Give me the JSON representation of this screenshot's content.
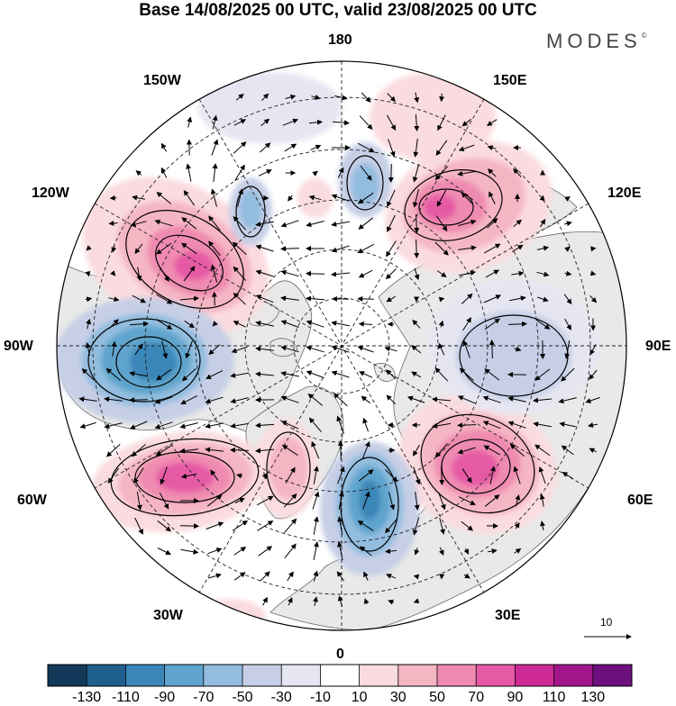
{
  "title": "Base 14/08/2025 00 UTC, valid 23/08/2025 00 UTC",
  "brand": "MODES",
  "brand_mark": "©",
  "labels": {
    "lon180": "180",
    "lon150w": "150W",
    "lon150e": "150E",
    "lon120w": "120W",
    "lon120e": "120E",
    "lon90w": "90W",
    "lon90e": "90E",
    "lon60w": "60W",
    "lon60e": "60E",
    "lon30w": "30W",
    "lon30e": "30E",
    "lon0": "0"
  },
  "reference_vector": "10",
  "legend": {
    "colors": [
      "#12395a",
      "#1f5f8e",
      "#3a86b8",
      "#5ea4cc",
      "#93bddf",
      "#c6cfe6",
      "#e6e6f2",
      "#ffffff",
      "#fadbdf",
      "#f5b6c4",
      "#ef8bb0",
      "#e65aa5",
      "#cd2a96",
      "#a3158a",
      "#6e0f80"
    ],
    "ticks": [
      "-130",
      "-110",
      "-90",
      "-70",
      "-50",
      "-30",
      "-10",
      "10",
      "30",
      "50",
      "70",
      "90",
      "110",
      "130"
    ]
  },
  "anomalies": [
    {
      "sign": "pos",
      "value": 90,
      "name": "anomaly-high-alaska"
    },
    {
      "sign": "pos",
      "value": 90,
      "name": "anomaly-high-east-siberia"
    },
    {
      "sign": "pos",
      "value": 90,
      "name": "anomaly-high-ural"
    },
    {
      "sign": "pos",
      "value": 90,
      "name": "anomaly-high-labrador"
    },
    {
      "sign": "pos",
      "value": 50,
      "name": "anomaly-high-greenland-sea"
    },
    {
      "sign": "pos",
      "value": 30,
      "name": "anomaly-high-north-pacific"
    },
    {
      "sign": "neg",
      "value": -90,
      "name": "anomaly-low-hudson-bay"
    },
    {
      "sign": "neg",
      "value": -90,
      "name": "anomaly-low-norwegian-sea"
    },
    {
      "sign": "neg",
      "value": -50,
      "name": "anomaly-low-bering"
    },
    {
      "sign": "neg",
      "value": -50,
      "name": "anomaly-low-kamchatka"
    },
    {
      "sign": "neg",
      "value": -30,
      "name": "anomaly-low-central-siberia"
    }
  ]
}
